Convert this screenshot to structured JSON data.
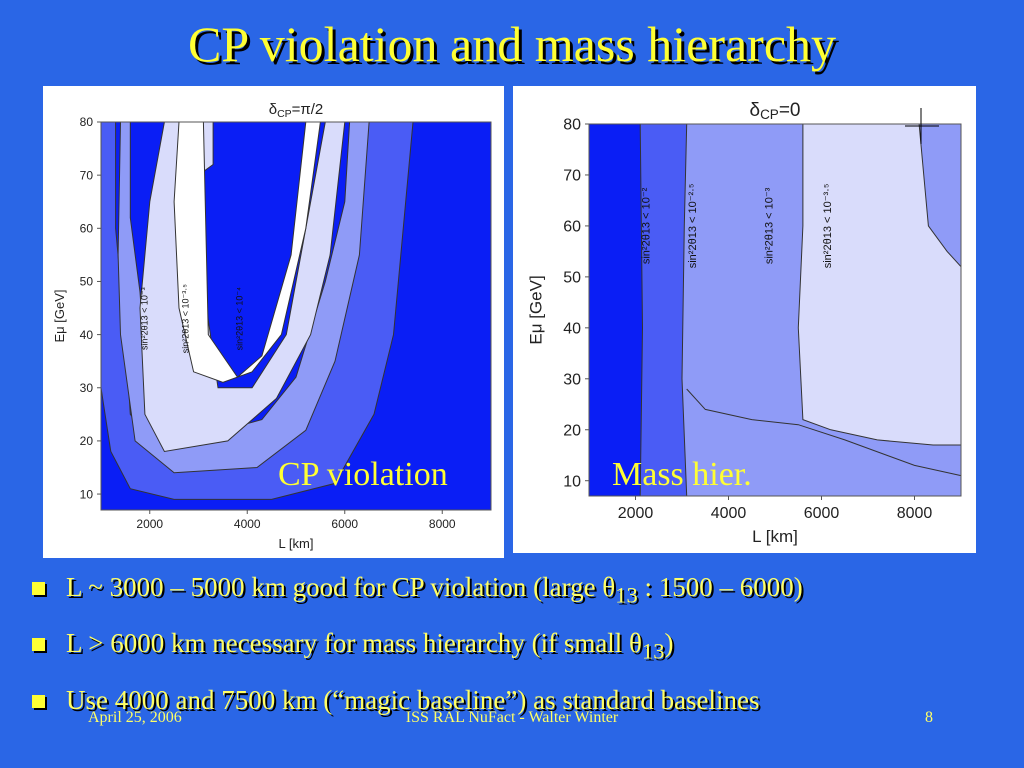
{
  "slide": {
    "title": "CP violation and mass hierarchy",
    "overlay_left": "CP violation",
    "overlay_right": "Mass hier.",
    "bullets": [
      {
        "pre": "L ~ 3000 – 5000 km good for CP violation (large θ",
        "sub": "13",
        "post": " : 1500 – 6000)"
      },
      {
        "pre": "L > 6000 km necessary for mass hierarchy (if small θ",
        "sub": "13",
        "post": ")"
      },
      {
        "pre": "Use 4000 and 7500 km (“magic baseline”) as standard baselines",
        "sub": "",
        "post": ""
      }
    ],
    "footer": {
      "date": "April 25, 2006",
      "center": "ISS RAL NuFact - Walter Winter",
      "page": "8"
    }
  },
  "chart_data": [
    {
      "type": "contour",
      "title": "δCP=π/2",
      "title_main": "δ",
      "title_sub": "CP",
      "title_rest": "=π/2",
      "xlabel": "L [km]",
      "ylabel": "Eμ [GeV]",
      "xlim": [
        1000,
        9000
      ],
      "ylim": [
        7,
        80
      ],
      "xticks": [
        2000,
        4000,
        6000,
        8000
      ],
      "yticks": [
        10,
        20,
        30,
        40,
        50,
        60,
        70,
        80
      ],
      "contour_labels": [
        {
          "text": "sin²2θ13 < 10⁻³",
          "x": 1950,
          "y": 43
        },
        {
          "text": "sin²2θ13 < 10⁻³·⁵",
          "x": 2800,
          "y": 43
        },
        {
          "text": "sin²2θ13 < 10⁻⁴",
          "x": 3900,
          "y": 43
        }
      ],
      "colors": {
        "c0": "#0a1ef5",
        "c1": "#4a5cf5",
        "c2": "#8f9bf7",
        "c3": "#d9dcfb",
        "c4": "#ffffff"
      }
    },
    {
      "type": "contour",
      "title": "δCP=0",
      "title_main": "δ",
      "title_sub": "CP",
      "title_rest": "=0",
      "xlabel": "L [km]",
      "ylabel": "Eμ [GeV]",
      "xlim": [
        1000,
        9000
      ],
      "ylim": [
        7,
        80
      ],
      "xticks": [
        2000,
        4000,
        6000,
        8000
      ],
      "yticks": [
        10,
        20,
        30,
        40,
        50,
        60,
        70,
        80
      ],
      "contour_labels": [
        {
          "text": "sin²2θ13 < 10⁻²",
          "x": 2300,
          "y": 60
        },
        {
          "text": "sin²2θ13 < 10⁻²·⁵",
          "x": 3300,
          "y": 60
        },
        {
          "text": "sin²2θ13 < 10⁻³",
          "x": 4950,
          "y": 60
        },
        {
          "text": "sin²2θ13 < 10⁻³·⁵",
          "x": 6200,
          "y": 60
        }
      ],
      "colors": {
        "c0": "#0a1ef5",
        "c1": "#4a5cf5",
        "c2": "#8f9bf7",
        "c3": "#d9dcfb"
      }
    }
  ]
}
